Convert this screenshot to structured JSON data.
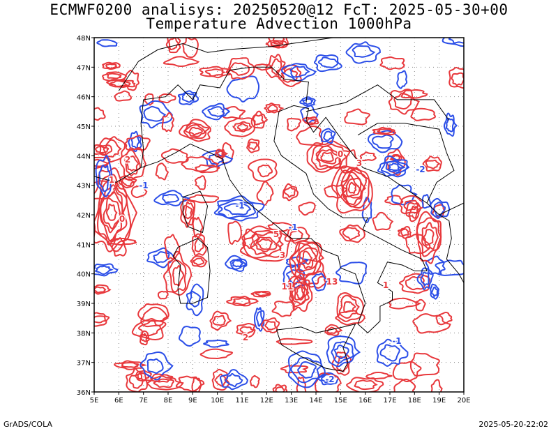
{
  "header": {
    "title_line1": "ECMWF0200 analisys: 20250520@12 FcT: 2025-05-30+00",
    "title_line2": "Temperature Advection 1000hPa"
  },
  "axes": {
    "lat_labels": [
      "36N",
      "37N",
      "38N",
      "39N",
      "40N",
      "41N",
      "42N",
      "43N",
      "44N",
      "45N",
      "46N",
      "47N",
      "48N"
    ],
    "lon_labels": [
      "5E",
      "6E",
      "7E",
      "8E",
      "9E",
      "10E",
      "11E",
      "12E",
      "13E",
      "14E",
      "15E",
      "16E",
      "17E",
      "18E",
      "19E",
      "20E"
    ]
  },
  "contour_labels": {
    "positive": [
      "0",
      "1",
      "2",
      "3",
      "5",
      "11",
      "13",
      "1",
      "2",
      "0",
      "3"
    ],
    "negative": [
      "-1",
      "-2",
      "-1",
      "-1",
      "-2",
      "-1"
    ]
  },
  "colors": {
    "warm_advection": "#e8383c",
    "cold_advection": "#2b4ee8",
    "coastline": "#000000",
    "grid": "#888888"
  },
  "footer": {
    "left": "GrADS/COLA",
    "right": "2025-05-20-22:02"
  }
}
